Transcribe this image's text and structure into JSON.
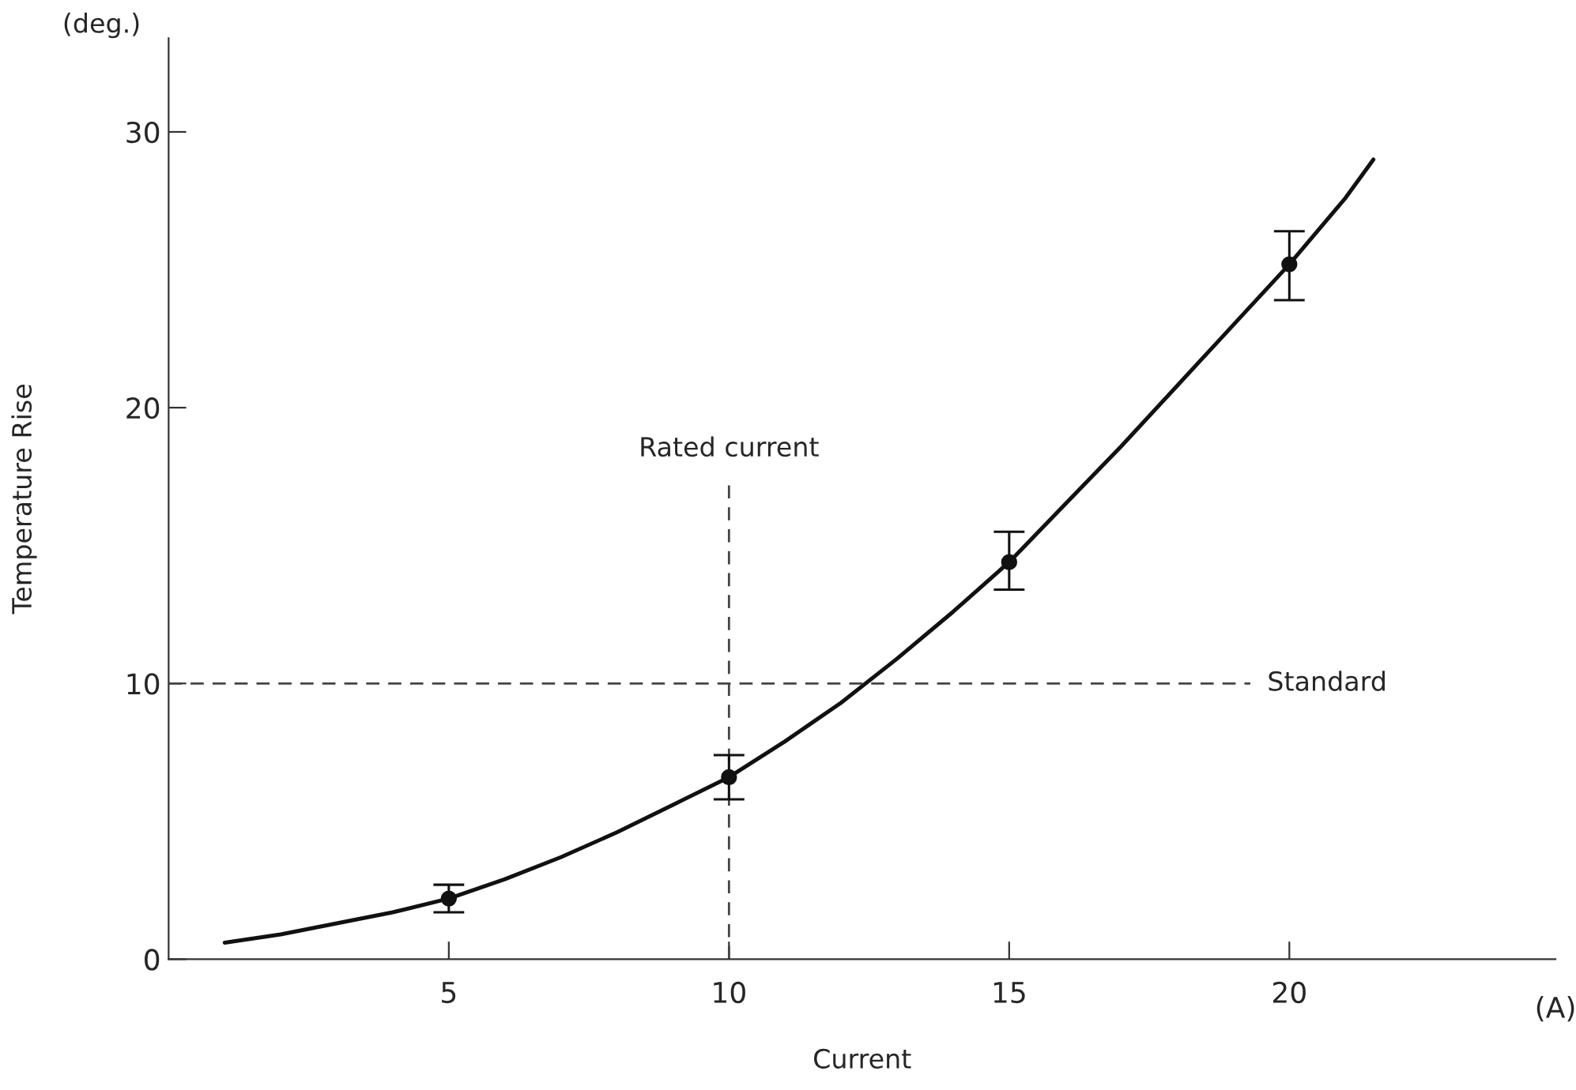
{
  "chart_data": {
    "type": "line",
    "xlabel": "Current",
    "ylabel": "Temperature Rise",
    "annotations": [
      "(deg.)",
      "(A)"
    ],
    "series": [
      {
        "color": "#111111",
        "x": [
          1,
          2,
          3,
          4,
          5,
          6,
          7,
          8,
          9,
          10,
          11,
          12,
          13,
          14,
          15,
          16,
          17,
          18,
          19,
          20,
          21,
          21.5
        ],
        "values": [
          0.6,
          0.9,
          1.3,
          1.7,
          2.2,
          2.9,
          3.7,
          4.6,
          5.6,
          6.6,
          7.9,
          9.3,
          10.9,
          12.6,
          14.4,
          16.5,
          18.6,
          20.8,
          23.0,
          25.2,
          27.6,
          29.0
        ]
      },
      {
        "type": "scatter",
        "color": "#111111",
        "marker": "circle",
        "x": [
          5,
          10,
          15,
          20
        ],
        "values": [
          2.2,
          6.6,
          14.4,
          25.2
        ],
        "errors": [
          [
            1.7,
            2.7
          ],
          [
            5.8,
            7.4
          ],
          [
            13.4,
            15.5
          ],
          [
            23.9,
            26.4
          ]
        ]
      }
    ],
    "xlim": [
      0,
      24.75
    ],
    "ylim": [
      0,
      33.4
    ],
    "xticks": [
      5,
      10,
      15,
      20
    ],
    "yticks": [
      0,
      10,
      20,
      30
    ],
    "ref_lines": [
      {
        "axis": "x",
        "value": 10,
        "label": "Rated current",
        "color": "#444444",
        "line_style": "dashed"
      },
      {
        "axis": "y",
        "value": 10,
        "label": "Standard",
        "color": "#444444",
        "line_style": "dashed"
      }
    ],
    "grid": false,
    "legend": false
  }
}
